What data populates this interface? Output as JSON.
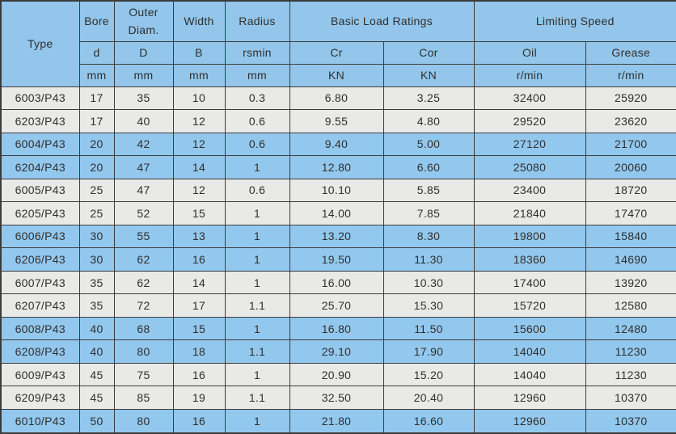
{
  "table": {
    "header": {
      "type_label": "Type",
      "bore_label": "Bore",
      "outer_diam": {
        "line1": "Outer",
        "line2": "Diam."
      },
      "width_label": "Width",
      "radius_label": "Radius",
      "basic_load_label": "Basic Load Ratings",
      "limiting_speed_label": "Limiting Speed",
      "symbols": {
        "d": "d",
        "D": "D",
        "B": "B",
        "rsmin": "rsmin",
        "cr": "Cr",
        "cor": "Cor",
        "oil": "Oil",
        "grease": "Grease"
      },
      "units": {
        "d": "mm",
        "D": "mm",
        "B": "mm",
        "rsmin": "mm",
        "cr": "KN",
        "cor": "KN",
        "oil": "r/min",
        "grease": "r/min"
      }
    },
    "rows": [
      {
        "type": "6003/P43",
        "d": "17",
        "D": "35",
        "B": "10",
        "rsmin": "0.3",
        "cr": "6.80",
        "cor": "3.25",
        "oil": "32400",
        "grease": "25920",
        "highlight": false
      },
      {
        "type": "6203/P43",
        "d": "17",
        "D": "40",
        "B": "12",
        "rsmin": "0.6",
        "cr": "9.55",
        "cor": "4.80",
        "oil": "29520",
        "grease": "23620",
        "highlight": false
      },
      {
        "type": "6004/P43",
        "d": "20",
        "D": "42",
        "B": "12",
        "rsmin": "0.6",
        "cr": "9.40",
        "cor": "5.00",
        "oil": "27120",
        "grease": "21700",
        "highlight": true
      },
      {
        "type": "6204/P43",
        "d": "20",
        "D": "47",
        "B": "14",
        "rsmin": "1",
        "cr": "12.80",
        "cor": "6.60",
        "oil": "25080",
        "grease": "20060",
        "highlight": true
      },
      {
        "type": "6005/P43",
        "d": "25",
        "D": "47",
        "B": "12",
        "rsmin": "0.6",
        "cr": "10.10",
        "cor": "5.85",
        "oil": "23400",
        "grease": "18720",
        "highlight": false
      },
      {
        "type": "6205/P43",
        "d": "25",
        "D": "52",
        "B": "15",
        "rsmin": "1",
        "cr": "14.00",
        "cor": "7.85",
        "oil": "21840",
        "grease": "17470",
        "highlight": false
      },
      {
        "type": "6006/P43",
        "d": "30",
        "D": "55",
        "B": "13",
        "rsmin": "1",
        "cr": "13.20",
        "cor": "8.30",
        "oil": "19800",
        "grease": "15840",
        "highlight": true
      },
      {
        "type": "6206/P43",
        "d": "30",
        "D": "62",
        "B": "16",
        "rsmin": "1",
        "cr": "19.50",
        "cor": "11.30",
        "oil": "18360",
        "grease": "14690",
        "highlight": true
      },
      {
        "type": "6007/P43",
        "d": "35",
        "D": "62",
        "B": "14",
        "rsmin": "1",
        "cr": "16.00",
        "cor": "10.30",
        "oil": "17400",
        "grease": "13920",
        "highlight": false
      },
      {
        "type": "6207/P43",
        "d": "35",
        "D": "72",
        "B": "17",
        "rsmin": "1.1",
        "cr": "25.70",
        "cor": "15.30",
        "oil": "15720",
        "grease": "12580",
        "highlight": false
      },
      {
        "type": "6008/P43",
        "d": "40",
        "D": "68",
        "B": "15",
        "rsmin": "1",
        "cr": "16.80",
        "cor": "11.50",
        "oil": "15600",
        "grease": "12480",
        "highlight": true
      },
      {
        "type": "6208/P43",
        "d": "40",
        "D": "80",
        "B": "18",
        "rsmin": "1.1",
        "cr": "29.10",
        "cor": "17.90",
        "oil": "14040",
        "grease": "11230",
        "highlight": true
      },
      {
        "type": "6009/P43",
        "d": "45",
        "D": "75",
        "B": "16",
        "rsmin": "1",
        "cr": "20.90",
        "cor": "15.20",
        "oil": "14040",
        "grease": "11230",
        "highlight": false
      },
      {
        "type": "6209/P43",
        "d": "45",
        "D": "85",
        "B": "19",
        "rsmin": "1.1",
        "cr": "32.50",
        "cor": "20.40",
        "oil": "12960",
        "grease": "10370",
        "highlight": false
      },
      {
        "type": "6010/P43",
        "d": "50",
        "D": "80",
        "B": "16",
        "rsmin": "1",
        "cr": "21.80",
        "cor": "16.60",
        "oil": "12960",
        "grease": "10370",
        "highlight": true
      }
    ]
  },
  "colors": {
    "header_blue": "#93c6ea",
    "row_blue": "#93c8ee",
    "row_gray": "#e9e9e7",
    "border": "#3c3c3c",
    "text": "#2f2f2f"
  },
  "chart_data": {
    "type": "table",
    "title": "Deep groove ball bearing specifications (P43 series)",
    "columns": [
      "Type",
      "Bore d (mm)",
      "Outer Diam. D (mm)",
      "Width B (mm)",
      "Radius rsmin (mm)",
      "Basic Load Rating Cr (KN)",
      "Basic Load Rating Cor (KN)",
      "Limiting Speed Oil (r/min)",
      "Limiting Speed Grease (r/min)"
    ],
    "rows": [
      [
        "6003/P43",
        17,
        35,
        10,
        0.3,
        6.8,
        3.25,
        32400,
        25920
      ],
      [
        "6203/P43",
        17,
        40,
        12,
        0.6,
        9.55,
        4.8,
        29520,
        23620
      ],
      [
        "6004/P43",
        20,
        42,
        12,
        0.6,
        9.4,
        5.0,
        27120,
        21700
      ],
      [
        "6204/P43",
        20,
        47,
        14,
        1,
        12.8,
        6.6,
        25080,
        20060
      ],
      [
        "6005/P43",
        25,
        47,
        12,
        0.6,
        10.1,
        5.85,
        23400,
        18720
      ],
      [
        "6205/P43",
        25,
        52,
        15,
        1,
        14.0,
        7.85,
        21840,
        17470
      ],
      [
        "6006/P43",
        30,
        55,
        13,
        1,
        13.2,
        8.3,
        19800,
        15840
      ],
      [
        "6206/P43",
        30,
        62,
        16,
        1,
        19.5,
        11.3,
        18360,
        14690
      ],
      [
        "6007/P43",
        35,
        62,
        14,
        1,
        16.0,
        10.3,
        17400,
        13920
      ],
      [
        "6207/P43",
        35,
        72,
        17,
        1.1,
        25.7,
        15.3,
        15720,
        12580
      ],
      [
        "6008/P43",
        40,
        68,
        15,
        1,
        16.8,
        11.5,
        15600,
        12480
      ],
      [
        "6208/P43",
        40,
        80,
        18,
        1.1,
        29.1,
        17.9,
        14040,
        11230
      ],
      [
        "6009/P43",
        45,
        75,
        16,
        1,
        20.9,
        15.2,
        14040,
        11230
      ],
      [
        "6209/P43",
        45,
        85,
        19,
        1.1,
        32.5,
        20.4,
        12960,
        10370
      ],
      [
        "6010/P43",
        50,
        80,
        16,
        1,
        21.8,
        16.6,
        12960,
        10370
      ]
    ]
  }
}
